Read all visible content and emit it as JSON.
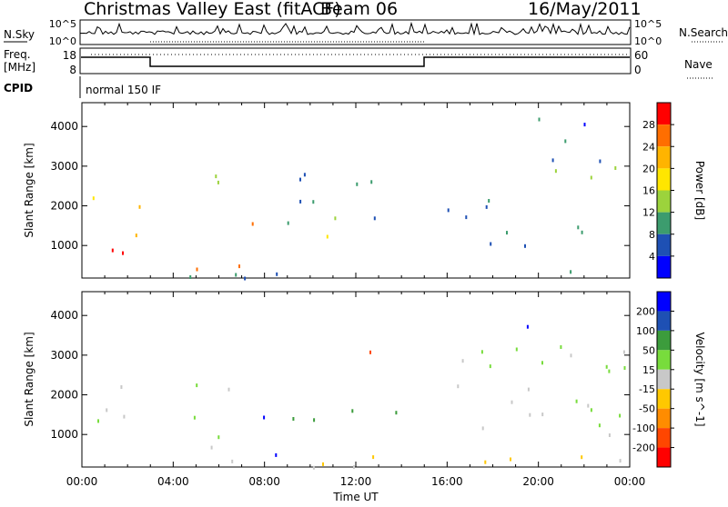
{
  "header": {
    "title": "Christmas Valley East (fitACF)",
    "beam": "Beam 06",
    "date": "16/May/2011"
  },
  "noise_panel": {
    "left_label": "N.Sky",
    "right_label": "N.Search",
    "ticks_left": [
      "10^5",
      "10^0"
    ],
    "ticks_right": [
      "10^5",
      "10^0"
    ]
  },
  "freq_panel": {
    "left_label_top": "Freq.",
    "left_label_bottom": "[MHz]",
    "right_label": "Nave",
    "ticks_left": [
      "18",
      "8"
    ],
    "ticks_right": [
      "60",
      "0"
    ]
  },
  "cpid": {
    "label": "CPID",
    "value": "normal 150 IF"
  },
  "chart_data": [
    {
      "type": "heatmap",
      "name": "power",
      "xlabel": "",
      "ylabel": "Slant Range [km]",
      "xlim": [
        0,
        24
      ],
      "ylim": [
        180,
        4600
      ],
      "yticks": [
        1000,
        2000,
        3000,
        4000
      ],
      "colorbar": {
        "label": "Power [dB]",
        "ticks": [
          "28",
          "24",
          "20",
          "16",
          "12",
          "8",
          "4"
        ],
        "colors": [
          "#ff0000",
          "#ff6e00",
          "#ffb400",
          "#ffe600",
          "#9cd33c",
          "#3c9c6e",
          "#1e50b4",
          "#0000ff"
        ]
      },
      "bands": [
        {
          "t0": 0.0,
          "t1": 3.5,
          "r0": 1900,
          "r1": 2300,
          "level": 20
        },
        {
          "t0": 1.0,
          "t1": 5.5,
          "r0": 850,
          "r1": 1350,
          "level": 24
        },
        {
          "t0": 3.5,
          "t1": 7.0,
          "r0": 350,
          "r1": 800,
          "level": 26
        },
        {
          "t0": 4.5,
          "t1": 6.5,
          "r0": 2300,
          "r1": 3000,
          "level": 8
        },
        {
          "t0": 6.3,
          "t1": 7.8,
          "r0": 1350,
          "r1": 2100,
          "level": 20
        },
        {
          "t0": 7.8,
          "t1": 9.0,
          "r0": 350,
          "r1": 550,
          "level": 24
        },
        {
          "t0": 8.5,
          "t1": 13.5,
          "r0": 1250,
          "r1": 1850,
          "level": 10
        },
        {
          "t0": 9.5,
          "t1": 15.0,
          "r0": 1700,
          "r1": 2900,
          "level": 7
        },
        {
          "t0": 15.5,
          "t1": 22.5,
          "r0": 1000,
          "r1": 2200,
          "level": 6
        },
        {
          "t0": 20.0,
          "t1": 24.0,
          "r0": 2300,
          "r1": 3400,
          "level": 7
        },
        {
          "t0": 19.0,
          "t1": 22.5,
          "r0": 3500,
          "r1": 4300,
          "level": 6
        },
        {
          "t0": 0.0,
          "t1": 24.0,
          "r0": 180,
          "r1": 380,
          "level": 6
        }
      ]
    },
    {
      "type": "heatmap",
      "name": "velocity",
      "xlabel": "Time UT",
      "ylabel": "Slant Range [km]",
      "xlim": [
        0,
        24
      ],
      "ylim": [
        180,
        4600
      ],
      "xticks": [
        "00:00",
        "04:00",
        "08:00",
        "12:00",
        "16:00",
        "20:00",
        "00:00"
      ],
      "yticks": [
        1000,
        2000,
        3000,
        4000
      ],
      "colorbar": {
        "label": "Velocity [m s^-1]",
        "ticks": [
          "200",
          "100",
          "50",
          "15",
          "-15",
          "-50",
          "-100",
          "-200"
        ],
        "colors": [
          "#0000ff",
          "#1e50b4",
          "#3c9c3c",
          "#78dc3c",
          "#c8c8c8",
          "#ffc800",
          "#ff8c00",
          "#ff4600",
          "#ff0000"
        ]
      },
      "bands": [
        {
          "t0": 0.0,
          "t1": 2.5,
          "r0": 1000,
          "r1": 2500,
          "level": 0
        },
        {
          "t0": 2.5,
          "t1": 3.5,
          "r0": 2000,
          "r1": 2300,
          "level": 200
        },
        {
          "t0": 3.5,
          "t1": 6.5,
          "r0": 700,
          "r1": 2300,
          "level": 0
        },
        {
          "t0": 6.5,
          "t1": 8.0,
          "r0": 1400,
          "r1": 2000,
          "level": 200
        },
        {
          "t0": 6.5,
          "t1": 9.0,
          "r0": 350,
          "r1": 550,
          "level": 150
        },
        {
          "t0": 8.0,
          "t1": 14.0,
          "r0": 1250,
          "r1": 1800,
          "level": 50
        },
        {
          "t0": 12.3,
          "t1": 13.0,
          "r0": 2400,
          "r1": 3200,
          "level": -200
        },
        {
          "t0": 0.0,
          "t1": 24.0,
          "r0": 180,
          "r1": 500,
          "level": -30
        },
        {
          "t0": 15.5,
          "t1": 24.0,
          "r0": 1000,
          "r1": 3400,
          "level": 0
        },
        {
          "t0": 19.0,
          "t1": 22.0,
          "r0": 3600,
          "r1": 4000,
          "level": 200
        }
      ]
    }
  ]
}
